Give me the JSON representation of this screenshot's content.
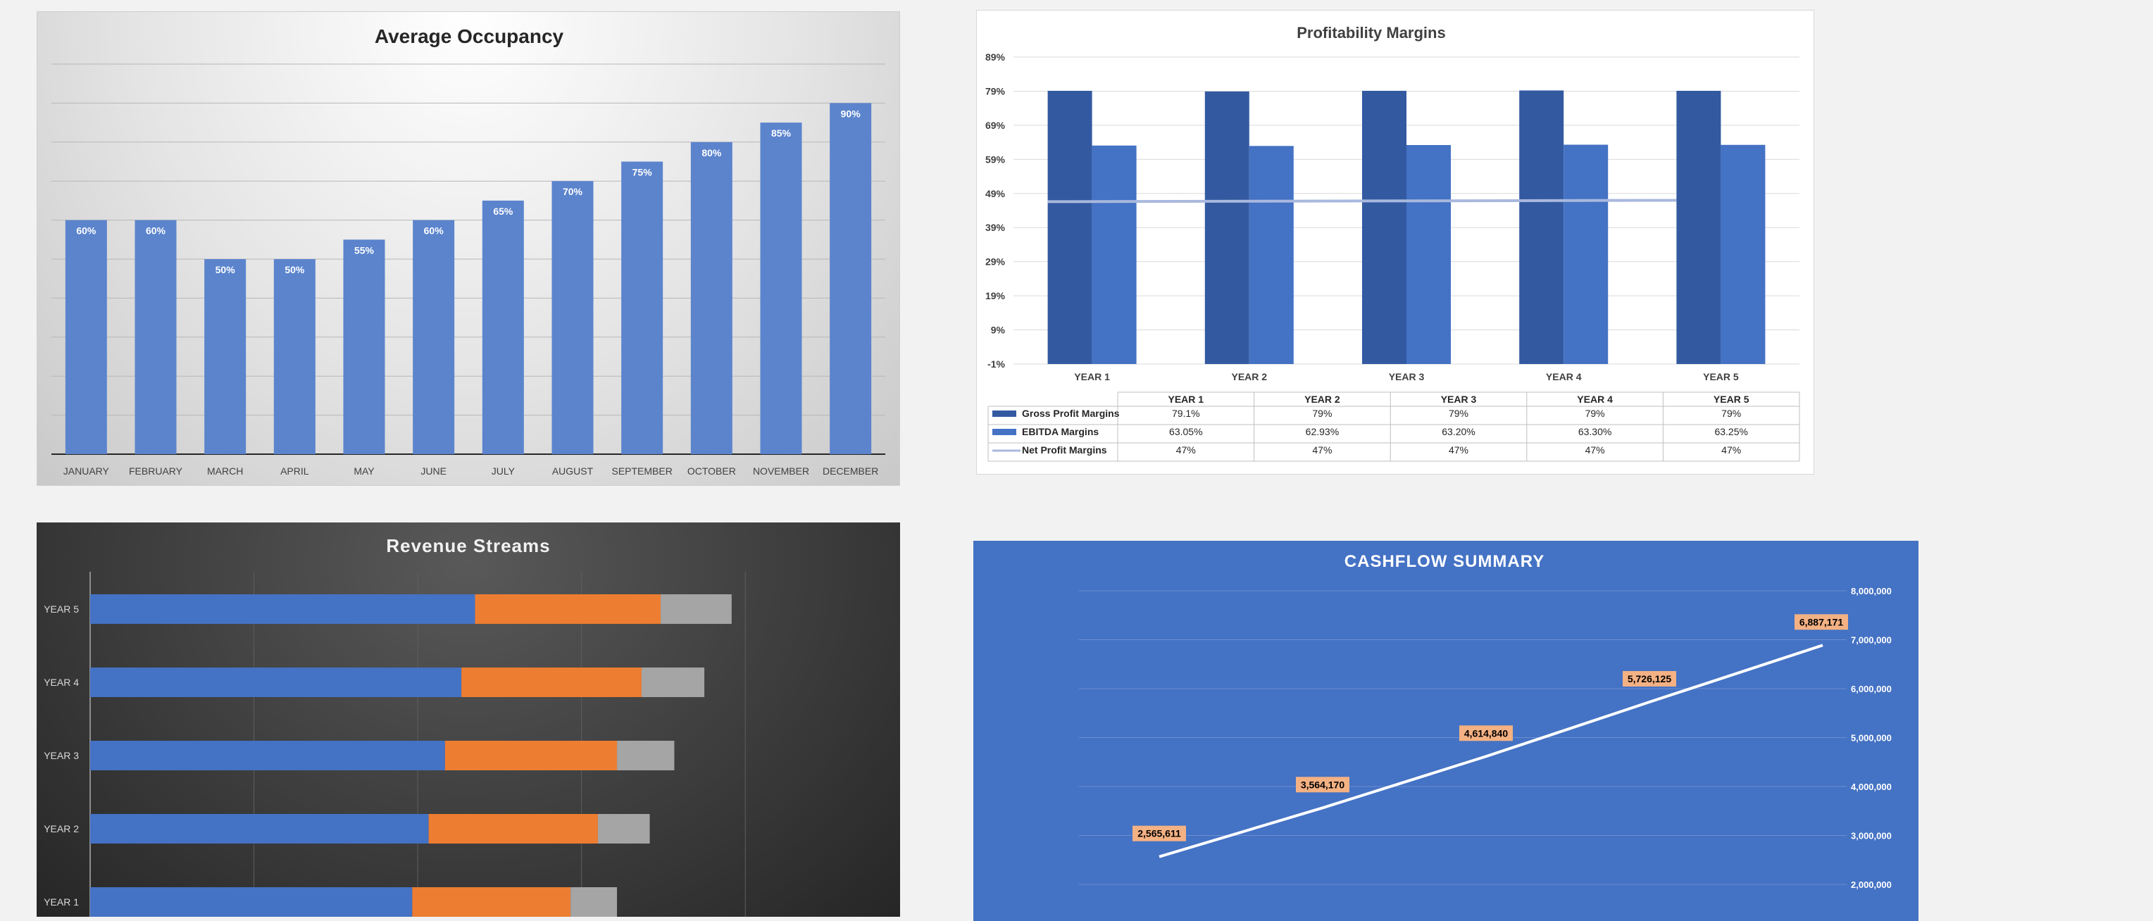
{
  "chart_data": [
    {
      "id": "occupancy",
      "type": "bar",
      "title": "Average Occupancy",
      "categories": [
        "JANUARY",
        "FEBRUARY",
        "MARCH",
        "APRIL",
        "MAY",
        "JUNE",
        "JULY",
        "AUGUST",
        "SEPTEMBER",
        "OCTOBER",
        "NOVEMBER",
        "DECEMBER"
      ],
      "values": [
        60,
        60,
        50,
        50,
        55,
        60,
        65,
        70,
        75,
        80,
        85,
        90
      ],
      "value_labels": [
        "60%",
        "60%",
        "50%",
        "50%",
        "55%",
        "60%",
        "65%",
        "70%",
        "75%",
        "80%",
        "85%",
        "90%"
      ],
      "ylim": [
        0,
        100
      ],
      "grid": true,
      "colors": {
        "bar": "#5b84cd"
      }
    },
    {
      "id": "profitability",
      "type": "bar",
      "title": "Profitability Margins",
      "categories": [
        "YEAR 1",
        "YEAR 2",
        "YEAR 3",
        "YEAR 4",
        "YEAR 5"
      ],
      "y_ticks": [
        "-1%",
        "9%",
        "19%",
        "29%",
        "39%",
        "49%",
        "59%",
        "69%",
        "79%",
        "89%"
      ],
      "ylim": [
        -1,
        89
      ],
      "series": [
        {
          "name": "Gross Profit Margins",
          "kind": "bar",
          "values": [
            79.1,
            78.9,
            79.1,
            79.2,
            79.1
          ],
          "labels": [
            "79.1%",
            "79%",
            "79%",
            "79%",
            "79%"
          ],
          "color": "#335aa1"
        },
        {
          "name": "EBITDA Margins",
          "kind": "bar",
          "values": [
            63.05,
            62.93,
            63.2,
            63.3,
            63.25
          ],
          "labels": [
            "63.05%",
            "62.93%",
            "63.20%",
            "63.30%",
            "63.25%"
          ],
          "color": "#4472c4"
        },
        {
          "name": "Net Profit Margins",
          "kind": "line",
          "values": [
            46.6,
            46.7,
            46.8,
            46.9,
            47.0
          ],
          "labels": [
            "47%",
            "47%",
            "47%",
            "47%",
            "47%"
          ],
          "color": "#a9b8de"
        }
      ],
      "grid": true,
      "data_table": true
    },
    {
      "id": "revenue",
      "type": "bar",
      "orientation": "horizontal",
      "stacked": true,
      "title": "Revenue Streams",
      "categories": [
        "YEAR 5",
        "YEAR 4",
        "YEAR 3",
        "YEAR 2",
        "YEAR 1"
      ],
      "series": [
        {
          "values": [
            705,
            680,
            650,
            620,
            590
          ],
          "color": "#4472c4"
        },
        {
          "values": [
            340,
            330,
            315,
            310,
            290
          ],
          "color": "#ed7d31"
        },
        {
          "values": [
            130,
            115,
            105,
            95,
            85
          ],
          "color": "#a5a5a5"
        }
      ],
      "xlim": [
        0,
        1450
      ],
      "grid": true
    },
    {
      "id": "cashflow",
      "type": "line",
      "title": "CASHFLOW SUMMARY",
      "values": [
        2565611,
        3564170,
        4614840,
        5726125,
        6887171
      ],
      "value_labels": [
        "2,565,611",
        "3,564,170",
        "4,614,840",
        "5,726,125",
        "6,887,171"
      ],
      "y_ticks": [
        "2,000,000",
        "3,000,000",
        "4,000,000",
        "5,000,000",
        "6,000,000",
        "7,000,000",
        "8,000,000"
      ],
      "ylim": [
        1000000,
        8000000
      ],
      "y_axis_side": "right",
      "grid": true,
      "colors": {
        "line": "#ffffff",
        "label_bg": "#f4b183",
        "background": "#4472c4"
      }
    }
  ]
}
